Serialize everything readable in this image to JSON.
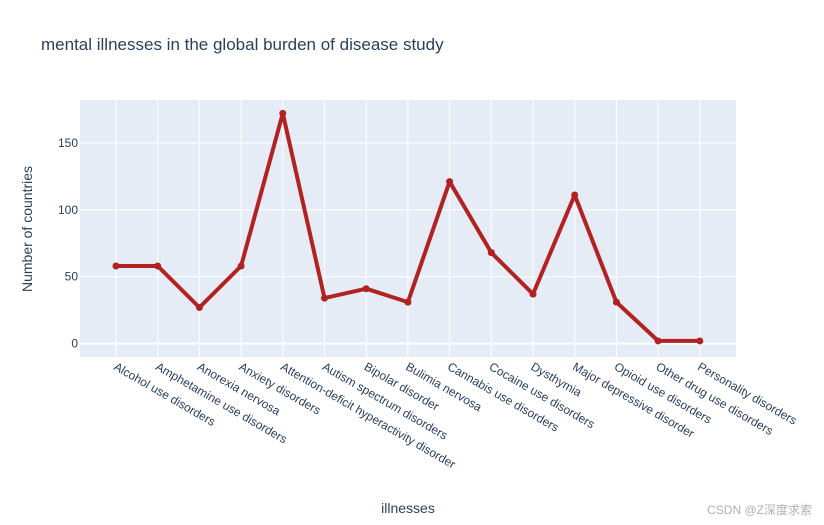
{
  "chart_data": {
    "type": "line",
    "title": "mental illnesses in the global burden of disease study",
    "xlabel": "illnesses",
    "ylabel": "Number of countries",
    "categories": [
      "Alcohol use disorders",
      "Amphetamine use disorders",
      "Anorexia nervosa",
      "Anxiety disorders",
      "Attention-deficit hyperactivity disorder",
      "Autism spectrum disorders",
      "Bipolar disorder",
      "Bulimia nervosa",
      "Cannabis use disorders",
      "Cocaine use disorders",
      "Dysthymia",
      "Major depressive disorder",
      "Opioid use disorders",
      "Other drug use disorders",
      "Personality disorders"
    ],
    "series": [
      {
        "name": "Number of countries",
        "values": [
          58,
          58,
          27,
          58,
          172,
          34,
          41,
          31,
          121,
          68,
          37,
          111,
          31,
          2,
          2
        ]
      }
    ],
    "yticks": [
      0,
      50,
      100,
      150
    ],
    "ylim": [
      -10,
      182
    ],
    "line_color": "#b22222",
    "grid": true
  },
  "watermark": "CSDN @Z深度求索"
}
